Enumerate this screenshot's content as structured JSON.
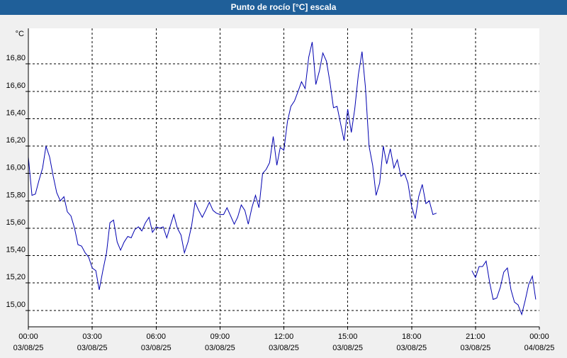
{
  "window": {
    "title": "Punto de rocío [°C] escala"
  },
  "chart_data": {
    "type": "line",
    "title": "Punto de rocío [°C] escala",
    "ylabel": "°C",
    "xlabel": "",
    "ylim": [
      14.88,
      17.06
    ],
    "xlim": [
      0,
      24
    ],
    "grid": true,
    "y_ticks": [
      {
        "v": 15.0,
        "label": "15,00"
      },
      {
        "v": 15.2,
        "label": "15,20"
      },
      {
        "v": 15.4,
        "label": "15,40"
      },
      {
        "v": 15.6,
        "label": "15,60"
      },
      {
        "v": 15.8,
        "label": "15,80"
      },
      {
        "v": 16.0,
        "label": "16,00"
      },
      {
        "v": 16.2,
        "label": "16,20"
      },
      {
        "v": 16.4,
        "label": "16,40"
      },
      {
        "v": 16.6,
        "label": "16,60"
      },
      {
        "v": 16.8,
        "label": "16,80"
      }
    ],
    "x_ticks": [
      {
        "v": 0,
        "time": "00:00",
        "date": "03/08/25"
      },
      {
        "v": 3,
        "time": "03:00",
        "date": "03/08/25"
      },
      {
        "v": 6,
        "time": "06:00",
        "date": "03/08/25"
      },
      {
        "v": 9,
        "time": "09:00",
        "date": "03/08/25"
      },
      {
        "v": 12,
        "time": "12:00",
        "date": "03/08/25"
      },
      {
        "v": 15,
        "time": "15:00",
        "date": "03/08/25"
      },
      {
        "v": 18,
        "time": "18:00",
        "date": "03/08/25"
      },
      {
        "v": 21,
        "time": "21:00",
        "date": "03/08/25"
      },
      {
        "v": 24,
        "time": "00:00",
        "date": "04/08/25"
      }
    ],
    "series": [
      {
        "color": "#0000b0",
        "segments": [
          [
            [
              0.0,
              16.12
            ],
            [
              0.17,
              15.84
            ],
            [
              0.33,
              15.85
            ],
            [
              0.5,
              15.95
            ],
            [
              0.67,
              16.04
            ],
            [
              0.83,
              16.2
            ],
            [
              1.0,
              16.12
            ],
            [
              1.17,
              15.98
            ],
            [
              1.33,
              15.86
            ],
            [
              1.5,
              15.8
            ],
            [
              1.67,
              15.83
            ],
            [
              1.83,
              15.72
            ],
            [
              2.0,
              15.69
            ],
            [
              2.17,
              15.6
            ],
            [
              2.33,
              15.48
            ],
            [
              2.5,
              15.47
            ],
            [
              2.67,
              15.42
            ],
            [
              2.83,
              15.39
            ],
            [
              3.0,
              15.31
            ],
            [
              3.17,
              15.29
            ],
            [
              3.33,
              15.15
            ],
            [
              3.5,
              15.29
            ],
            [
              3.67,
              15.42
            ],
            [
              3.83,
              15.64
            ],
            [
              4.0,
              15.66
            ],
            [
              4.17,
              15.5
            ],
            [
              4.33,
              15.44
            ],
            [
              4.5,
              15.5
            ],
            [
              4.67,
              15.54
            ],
            [
              4.83,
              15.53
            ],
            [
              5.0,
              15.59
            ],
            [
              5.17,
              15.61
            ],
            [
              5.33,
              15.58
            ],
            [
              5.5,
              15.64
            ],
            [
              5.67,
              15.68
            ],
            [
              5.83,
              15.57
            ],
            [
              6.0,
              15.61
            ],
            [
              6.17,
              15.6
            ],
            [
              6.33,
              15.61
            ],
            [
              6.5,
              15.53
            ],
            [
              6.67,
              15.62
            ],
            [
              6.83,
              15.7
            ],
            [
              7.0,
              15.6
            ],
            [
              7.17,
              15.55
            ],
            [
              7.33,
              15.42
            ],
            [
              7.5,
              15.5
            ],
            [
              7.67,
              15.62
            ],
            [
              7.83,
              15.79
            ],
            [
              8.0,
              15.73
            ],
            [
              8.17,
              15.68
            ],
            [
              8.33,
              15.73
            ],
            [
              8.5,
              15.79
            ],
            [
              8.67,
              15.73
            ],
            [
              8.83,
              15.71
            ],
            [
              9.0,
              15.7
            ],
            [
              9.17,
              15.7
            ],
            [
              9.33,
              15.75
            ],
            [
              9.5,
              15.69
            ],
            [
              9.67,
              15.63
            ],
            [
              9.83,
              15.68
            ],
            [
              10.0,
              15.77
            ],
            [
              10.17,
              15.73
            ],
            [
              10.33,
              15.63
            ],
            [
              10.5,
              15.75
            ],
            [
              10.67,
              15.84
            ],
            [
              10.83,
              15.75
            ],
            [
              11.0,
              16.0
            ],
            [
              11.17,
              16.03
            ],
            [
              11.33,
              16.08
            ],
            [
              11.5,
              16.27
            ],
            [
              11.67,
              16.06
            ],
            [
              11.83,
              16.19
            ],
            [
              12.0,
              16.17
            ],
            [
              12.17,
              16.38
            ],
            [
              12.33,
              16.49
            ],
            [
              12.5,
              16.53
            ],
            [
              12.67,
              16.6
            ],
            [
              12.83,
              16.67
            ],
            [
              13.0,
              16.62
            ],
            [
              13.17,
              16.85
            ],
            [
              13.33,
              16.96
            ],
            [
              13.5,
              16.65
            ],
            [
              13.67,
              16.75
            ],
            [
              13.83,
              16.88
            ],
            [
              14.0,
              16.82
            ],
            [
              14.17,
              16.66
            ],
            [
              14.33,
              16.48
            ],
            [
              14.5,
              16.49
            ],
            [
              14.67,
              16.36
            ],
            [
              14.83,
              16.24
            ],
            [
              15.0,
              16.47
            ],
            [
              15.17,
              16.3
            ],
            [
              15.33,
              16.47
            ],
            [
              15.5,
              16.72
            ],
            [
              15.67,
              16.89
            ],
            [
              15.83,
              16.63
            ],
            [
              16.0,
              16.2
            ],
            [
              16.17,
              16.06
            ],
            [
              16.33,
              15.84
            ],
            [
              16.5,
              15.93
            ],
            [
              16.67,
              16.2
            ],
            [
              16.83,
              16.07
            ],
            [
              17.0,
              16.18
            ],
            [
              17.17,
              16.04
            ],
            [
              17.33,
              16.1
            ],
            [
              17.5,
              15.98
            ],
            [
              17.67,
              16.0
            ],
            [
              17.83,
              15.93
            ],
            [
              18.0,
              15.76
            ],
            [
              18.17,
              15.67
            ],
            [
              18.33,
              15.83
            ],
            [
              18.5,
              15.92
            ],
            [
              18.67,
              15.78
            ],
            [
              18.83,
              15.8
            ],
            [
              19.0,
              15.7
            ],
            [
              19.17,
              15.71
            ]
          ],
          [
            [
              20.83,
              15.29
            ],
            [
              21.0,
              15.24
            ],
            [
              21.17,
              15.32
            ],
            [
              21.33,
              15.32
            ],
            [
              21.5,
              15.36
            ],
            [
              21.67,
              15.2
            ],
            [
              21.83,
              15.08
            ],
            [
              22.0,
              15.09
            ],
            [
              22.17,
              15.17
            ],
            [
              22.33,
              15.28
            ],
            [
              22.5,
              15.31
            ],
            [
              22.67,
              15.15
            ],
            [
              22.83,
              15.06
            ],
            [
              23.0,
              15.04
            ],
            [
              23.17,
              14.97
            ],
            [
              23.33,
              15.07
            ],
            [
              23.5,
              15.19
            ],
            [
              23.67,
              15.25
            ],
            [
              23.83,
              15.08
            ]
          ]
        ]
      }
    ]
  }
}
